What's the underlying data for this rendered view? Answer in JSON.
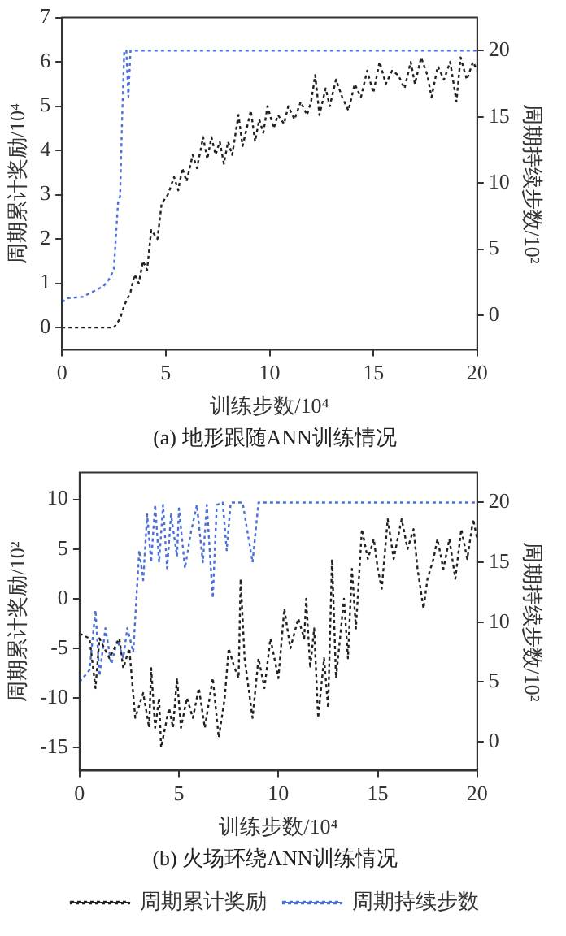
{
  "chart_data": [
    {
      "type": "line",
      "title": "(a) 地形跟随ANN训练情况",
      "xlabel": "训练步数/10⁴",
      "ylabel": "周期累计奖励/10⁴",
      "y2label": "周期持续步数/10²",
      "xlim": [
        0,
        20
      ],
      "xticks": [
        0,
        5,
        10,
        15,
        20
      ],
      "ylim": [
        -0.5,
        7
      ],
      "yticks": [
        0,
        1,
        2,
        3,
        4,
        5,
        6,
        7
      ],
      "y2lim": [
        -2.6,
        22.5
      ],
      "y2ticks": [
        0,
        5,
        10,
        15,
        20
      ],
      "line_style": "dotted",
      "marker": "none",
      "legend": false,
      "series": [
        {
          "color": "#222222",
          "x": [
            0,
            0.5,
            1,
            1.5,
            2,
            2.5,
            2.8,
            3,
            3.3,
            3.5,
            3.7,
            3.9,
            4.1,
            4.3,
            4.6,
            4.8,
            5.1,
            5.4,
            5.6,
            5.8,
            6,
            6.3,
            6.5,
            6.8,
            7,
            7.2,
            7.4,
            7.6,
            7.8,
            8,
            8.2,
            8.5,
            8.7,
            8.9,
            9.1,
            9.3,
            9.5,
            9.7,
            9.9,
            10.2,
            10.4,
            10.7,
            10.9,
            11.2,
            11.5,
            11.8,
            12,
            12.2,
            12.4,
            12.7,
            12.9,
            13.2,
            13.5,
            13.8,
            14.1,
            14.4,
            14.7,
            15,
            15.3,
            15.6,
            15.9,
            16.2,
            16.5,
            16.8,
            17,
            17.3,
            17.6,
            17.8,
            18.1,
            18.4,
            18.7,
            19,
            19.2,
            19.5,
            19.8,
            20
          ],
          "values": [
            0,
            0,
            0,
            0,
            0,
            0,
            0.2,
            0.5,
            0.8,
            1.2,
            1.0,
            1.5,
            1.3,
            2.2,
            2.0,
            2.8,
            3.0,
            3.4,
            3.1,
            3.6,
            3.3,
            3.9,
            3.6,
            4.3,
            3.8,
            4.3,
            3.9,
            4.2,
            3.7,
            4.2,
            3.9,
            4.8,
            4.1,
            4.5,
            4.9,
            4.2,
            4.7,
            4.4,
            5.0,
            4.5,
            4.8,
            4.6,
            5.0,
            4.7,
            5.1,
            4.8,
            5.1,
            5.7,
            4.8,
            5.4,
            5.0,
            5.6,
            5.2,
            4.9,
            5.5,
            5.2,
            5.8,
            5.3,
            6.0,
            5.5,
            5.8,
            5.7,
            5.4,
            6.0,
            5.5,
            6.1,
            5.7,
            5.2,
            5.9,
            5.6,
            6.0,
            5.1,
            6.1,
            5.6,
            6.0,
            5.8
          ],
          "axis": "y"
        },
        {
          "color": "#4a6fd6",
          "x": [
            0,
            0.3,
            1,
            1.5,
            2,
            2.3,
            2.5,
            2.7,
            2.8,
            2.9,
            3,
            3.1,
            3.2,
            3.3,
            3.5,
            5,
            10,
            15,
            20
          ],
          "values": [
            1,
            1.3,
            1.4,
            1.8,
            2.2,
            2.8,
            3.5,
            8.5,
            9,
            15,
            20,
            20,
            16.5,
            20,
            20,
            20,
            20,
            20,
            20
          ],
          "axis": "y2"
        }
      ]
    },
    {
      "type": "line",
      "title": "(b) 火场环绕ANN训练情况",
      "xlabel": "训练步数/10⁴",
      "ylabel": "周期累计奖励/10²",
      "y2label": "周期持续步数/10²",
      "xlim": [
        0,
        20
      ],
      "xticks": [
        0,
        5,
        10,
        15,
        20
      ],
      "ylim": [
        -17.3,
        12.7
      ],
      "yticks": [
        -15,
        -10,
        -5,
        0,
        5,
        10
      ],
      "y2lim": [
        -2.4,
        22.5
      ],
      "y2ticks": [
        0,
        5,
        10,
        15,
        20
      ],
      "line_style": "dotted",
      "marker": "none",
      "legend": "bottom",
      "series": [
        {
          "name": "周期累计奖励",
          "color": "#222222",
          "x": [
            0,
            0.5,
            0.8,
            1,
            1.5,
            2,
            2.2,
            2.5,
            2.8,
            3.2,
            3.5,
            3.6,
            3.8,
            4,
            4.1,
            4.5,
            4.7,
            4.9,
            5.1,
            5.4,
            5.7,
            6,
            6.3,
            6.7,
            7,
            7.3,
            7.5,
            7.8,
            8,
            8.1,
            8.3,
            8.7,
            9,
            9.3,
            9.6,
            10,
            10.3,
            10.6,
            11,
            11.3,
            11.4,
            11.6,
            11.8,
            12,
            12.3,
            12.5,
            12.7,
            12.9,
            13.3,
            13.5,
            13.7,
            13.9,
            14.2,
            14.5,
            14.8,
            15,
            15.2,
            15.5,
            15.8,
            16.2,
            16.5,
            16.8,
            17,
            17.3,
            17.5,
            17.8,
            18,
            18.3,
            18.6,
            18.9,
            19.2,
            19.5,
            19.8,
            20
          ],
          "values": [
            -3.5,
            -4,
            -9,
            -4,
            -6,
            -4,
            -7,
            -5,
            -12,
            -9.5,
            -13,
            -7,
            -13,
            -10,
            -15,
            -11,
            -13,
            -8,
            -13,
            -10,
            -12,
            -9,
            -13,
            -8,
            -14,
            -10,
            -5,
            -7,
            -8,
            2,
            -6,
            -12,
            -6,
            -9,
            -4,
            -8,
            -1,
            -5,
            -2,
            -4,
            0,
            -7,
            -3,
            -12,
            -6,
            -11,
            4,
            -8,
            0,
            -6,
            3,
            -3,
            7,
            4,
            6,
            3,
            1,
            8,
            4,
            8,
            5,
            7,
            3,
            -1,
            2,
            4,
            6,
            3,
            6,
            2,
            7,
            4,
            8,
            6
          ],
          "axis": "y"
        },
        {
          "name": "周期持续步数",
          "color": "#4a6fd6",
          "x": [
            0,
            0.5,
            0.8,
            1,
            1.3,
            1.6,
            1.9,
            2.2,
            2.4,
            2.7,
            3,
            3.2,
            3.4,
            3.6,
            3.8,
            4,
            4.2,
            4.4,
            4.6,
            4.9,
            5,
            5.3,
            5.6,
            5.9,
            6.2,
            6.4,
            6.7,
            6.9,
            7.2,
            7.4,
            7.6,
            8.2,
            8.5,
            8.7,
            9,
            20
          ],
          "values": [
            5,
            6,
            11,
            5.5,
            9.5,
            6.5,
            8.5,
            7,
            9.5,
            7.5,
            16,
            13.5,
            19,
            15,
            19.8,
            15,
            19.8,
            14.5,
            19,
            15.5,
            19.5,
            14.5,
            17.5,
            19.8,
            15,
            19.8,
            12,
            19.8,
            20,
            16,
            20,
            20,
            17,
            15,
            20,
            20
          ],
          "axis": "y2"
        }
      ]
    }
  ]
}
